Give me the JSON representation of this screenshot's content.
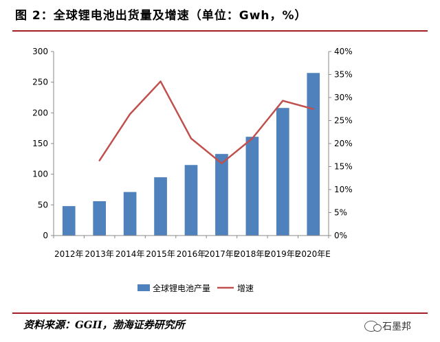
{
  "title": "图 2：全球锂电池出货量及增速（单位：Gwh，%）",
  "source": "资料来源：GGII，渤海证券研究所",
  "watermark": "石墨邦",
  "colors": {
    "bar": "#4f81bd",
    "line": "#c0504d",
    "rule": "#a51d22"
  },
  "chart_data": {
    "type": "bar",
    "categories": [
      "2012年",
      "2013年",
      "2014年",
      "2015年",
      "2016年",
      "2017年E",
      "2018年E",
      "2019年E",
      "2020年E"
    ],
    "series": [
      {
        "name": "全球锂电池产量",
        "type": "bar",
        "axis": "left",
        "values": [
          48,
          56,
          71,
          95,
          115,
          133,
          161,
          208,
          265
        ]
      },
      {
        "name": "增速",
        "type": "line",
        "axis": "right",
        "values": [
          null,
          16.3,
          26.4,
          33.5,
          21.1,
          15.7,
          21.1,
          29.3,
          27.5
        ]
      }
    ],
    "y_left": {
      "min": 0,
      "max": 300,
      "ticks": [
        "0",
        "50",
        "100",
        "150",
        "200",
        "250",
        "300"
      ]
    },
    "y_right": {
      "min": 0,
      "max": 40,
      "ticks": [
        "0%",
        "5%",
        "10%",
        "15%",
        "20%",
        "25%",
        "30%",
        "35%",
        "40%"
      ]
    },
    "grid": false,
    "legend_position": "bottom"
  }
}
